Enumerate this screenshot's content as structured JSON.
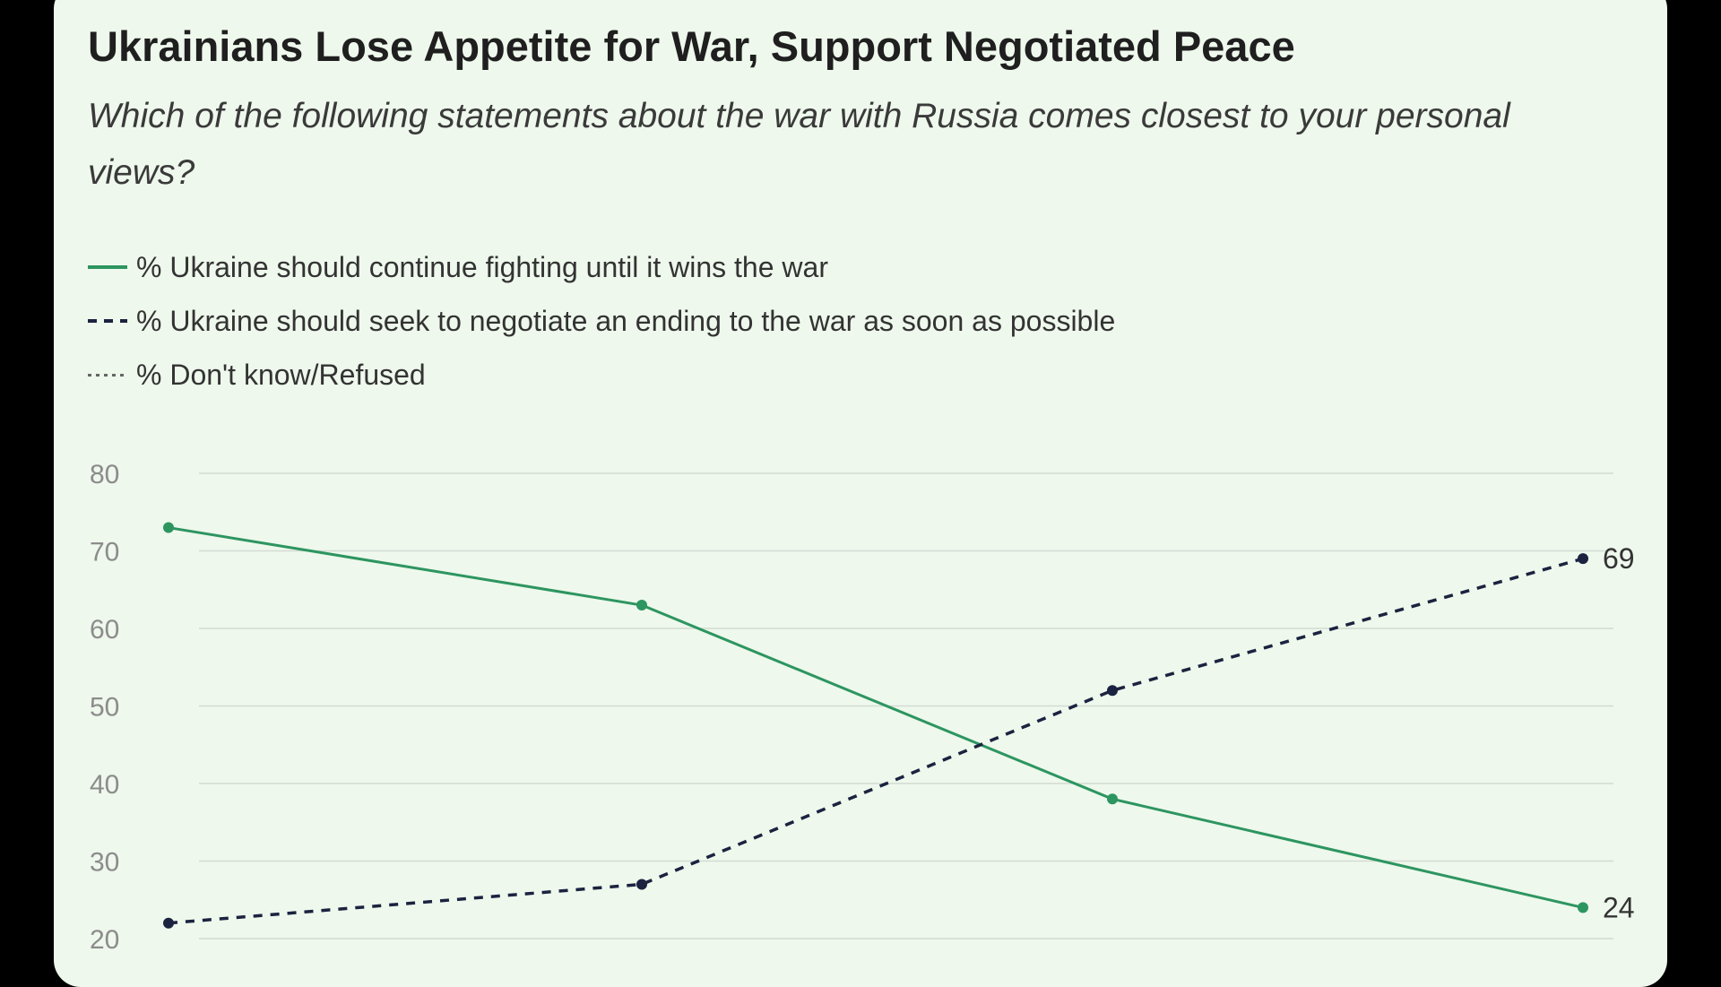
{
  "chart_data": {
    "type": "line",
    "title": "Ukrainians Lose Appetite for War, Support Negotiated Peace",
    "subtitle": "Which of the following statements about the war with Russia comes closest to your personal views?",
    "yticks": [
      80,
      70,
      60,
      50,
      40,
      30,
      20
    ],
    "ylim": [
      20,
      80
    ],
    "grid": true,
    "legend_position": "top-left",
    "series": [
      {
        "name": "% Ukraine should continue fighting until it wins the war",
        "values": [
          73,
          63,
          38,
          24
        ],
        "style": "solid",
        "color": "#2d9560"
      },
      {
        "name": "% Ukraine should seek to negotiate an ending to the war as soon as possible",
        "values": [
          22,
          27,
          52,
          69
        ],
        "style": "dashed",
        "color": "#1b2340"
      },
      {
        "name": "% Don't know/Refused",
        "values": [],
        "style": "dotted",
        "color": "#666666"
      }
    ],
    "end_labels": [
      "69",
      "24"
    ]
  }
}
